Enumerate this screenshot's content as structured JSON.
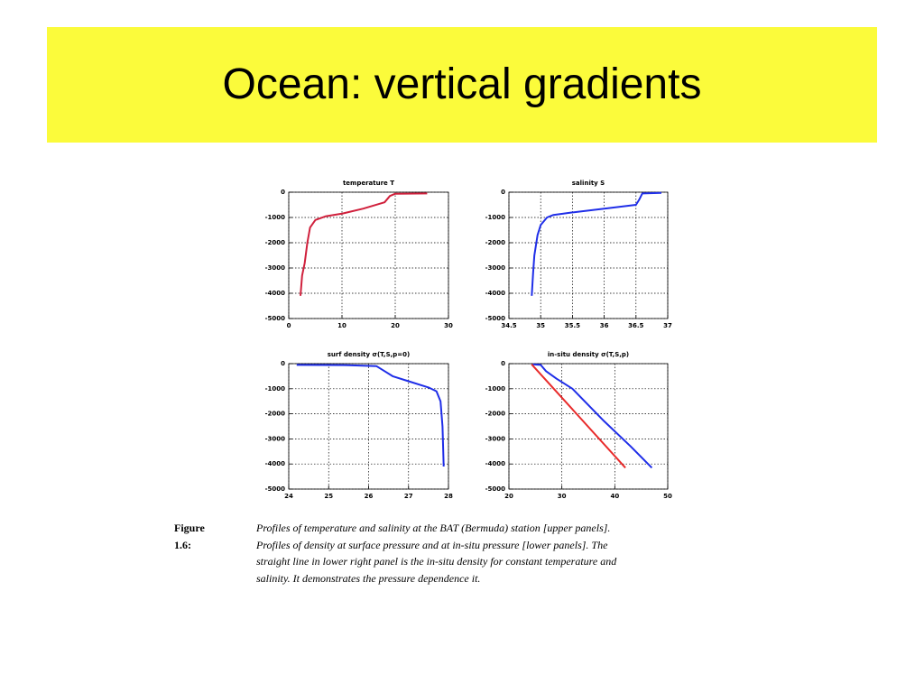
{
  "title": "Ocean: vertical gradients",
  "caption": {
    "label": "Figure 1.6:",
    "lines": [
      "Profiles of temperature and salinity at the BAT (Bermuda) station [upper panels].",
      "Profiles of density at surface pressure and at in-situ pressure [lower panels].  The",
      "straight line in lower right panel is the in-situ density for constant temperature and",
      "salinity.  It demonstrates the pressure dependence it."
    ]
  },
  "chart_data": [
    {
      "type": "line",
      "title": "temperature T",
      "xlim": [
        0,
        30
      ],
      "xticks": [
        0,
        10,
        20,
        30
      ],
      "ylim": [
        -5000,
        0
      ],
      "yticks": [
        0,
        -1000,
        -2000,
        -3000,
        -4000,
        -5000
      ],
      "grid": true,
      "series": [
        {
          "color": "#d0203c",
          "x": [
            26,
            20,
            19,
            18,
            14,
            10,
            7,
            5,
            4,
            3.5,
            3,
            2.5,
            2.2
          ],
          "values": [
            -50,
            -60,
            -150,
            -400,
            -650,
            -850,
            -950,
            -1100,
            -1400,
            -2000,
            -2800,
            -3300,
            -4100
          ]
        }
      ]
    },
    {
      "type": "line",
      "title": "salinity S",
      "xlim": [
        34.5,
        37
      ],
      "xticks": [
        34.5,
        35,
        35.5,
        36,
        36.5,
        37
      ],
      "ylim": [
        -5000,
        0
      ],
      "yticks": [
        0,
        -1000,
        -2000,
        -3000,
        -4000,
        -5000
      ],
      "grid": true,
      "series": [
        {
          "color": "#1f2ee8",
          "x": [
            36.9,
            36.6,
            36.55,
            36.5,
            36.0,
            35.5,
            35.2,
            35.1,
            35.0,
            34.95,
            34.9,
            34.88,
            34.86
          ],
          "values": [
            -30,
            -50,
            -300,
            -500,
            -650,
            -800,
            -900,
            -1000,
            -1300,
            -1700,
            -2500,
            -3200,
            -4100
          ]
        }
      ]
    },
    {
      "type": "line",
      "title": "surf density σ(T,S,p=0)",
      "xlim": [
        24,
        28
      ],
      "xticks": [
        24,
        25,
        26,
        27,
        28
      ],
      "ylim": [
        -5000,
        0
      ],
      "yticks": [
        0,
        -1000,
        -2000,
        -3000,
        -4000,
        -5000
      ],
      "grid": true,
      "series": [
        {
          "color": "#1f2ee8",
          "x": [
            24.2,
            25.5,
            26.2,
            26.4,
            26.6,
            27.0,
            27.5,
            27.7,
            27.8,
            27.85,
            27.88
          ],
          "values": [
            -50,
            -60,
            -100,
            -300,
            -500,
            -700,
            -950,
            -1100,
            -1500,
            -2500,
            -4100
          ]
        }
      ]
    },
    {
      "type": "line",
      "title": "in-situ density σ(T,S,p)",
      "xlim": [
        20,
        50
      ],
      "xticks": [
        20,
        30,
        40,
        50
      ],
      "ylim": [
        -5000,
        0
      ],
      "yticks": [
        0,
        -1000,
        -2000,
        -3000,
        -4000,
        -5000
      ],
      "grid": true,
      "series": [
        {
          "color": "#1f2ee8",
          "x": [
            24.5,
            26,
            27,
            29,
            32,
            38,
            43,
            47
          ],
          "values": [
            -30,
            -50,
            -300,
            -600,
            -1000,
            -2300,
            -3300,
            -4150
          ]
        },
        {
          "color": "#e82a2a",
          "x": [
            24.3,
            42
          ],
          "values": [
            -30,
            -4150
          ]
        }
      ]
    }
  ]
}
